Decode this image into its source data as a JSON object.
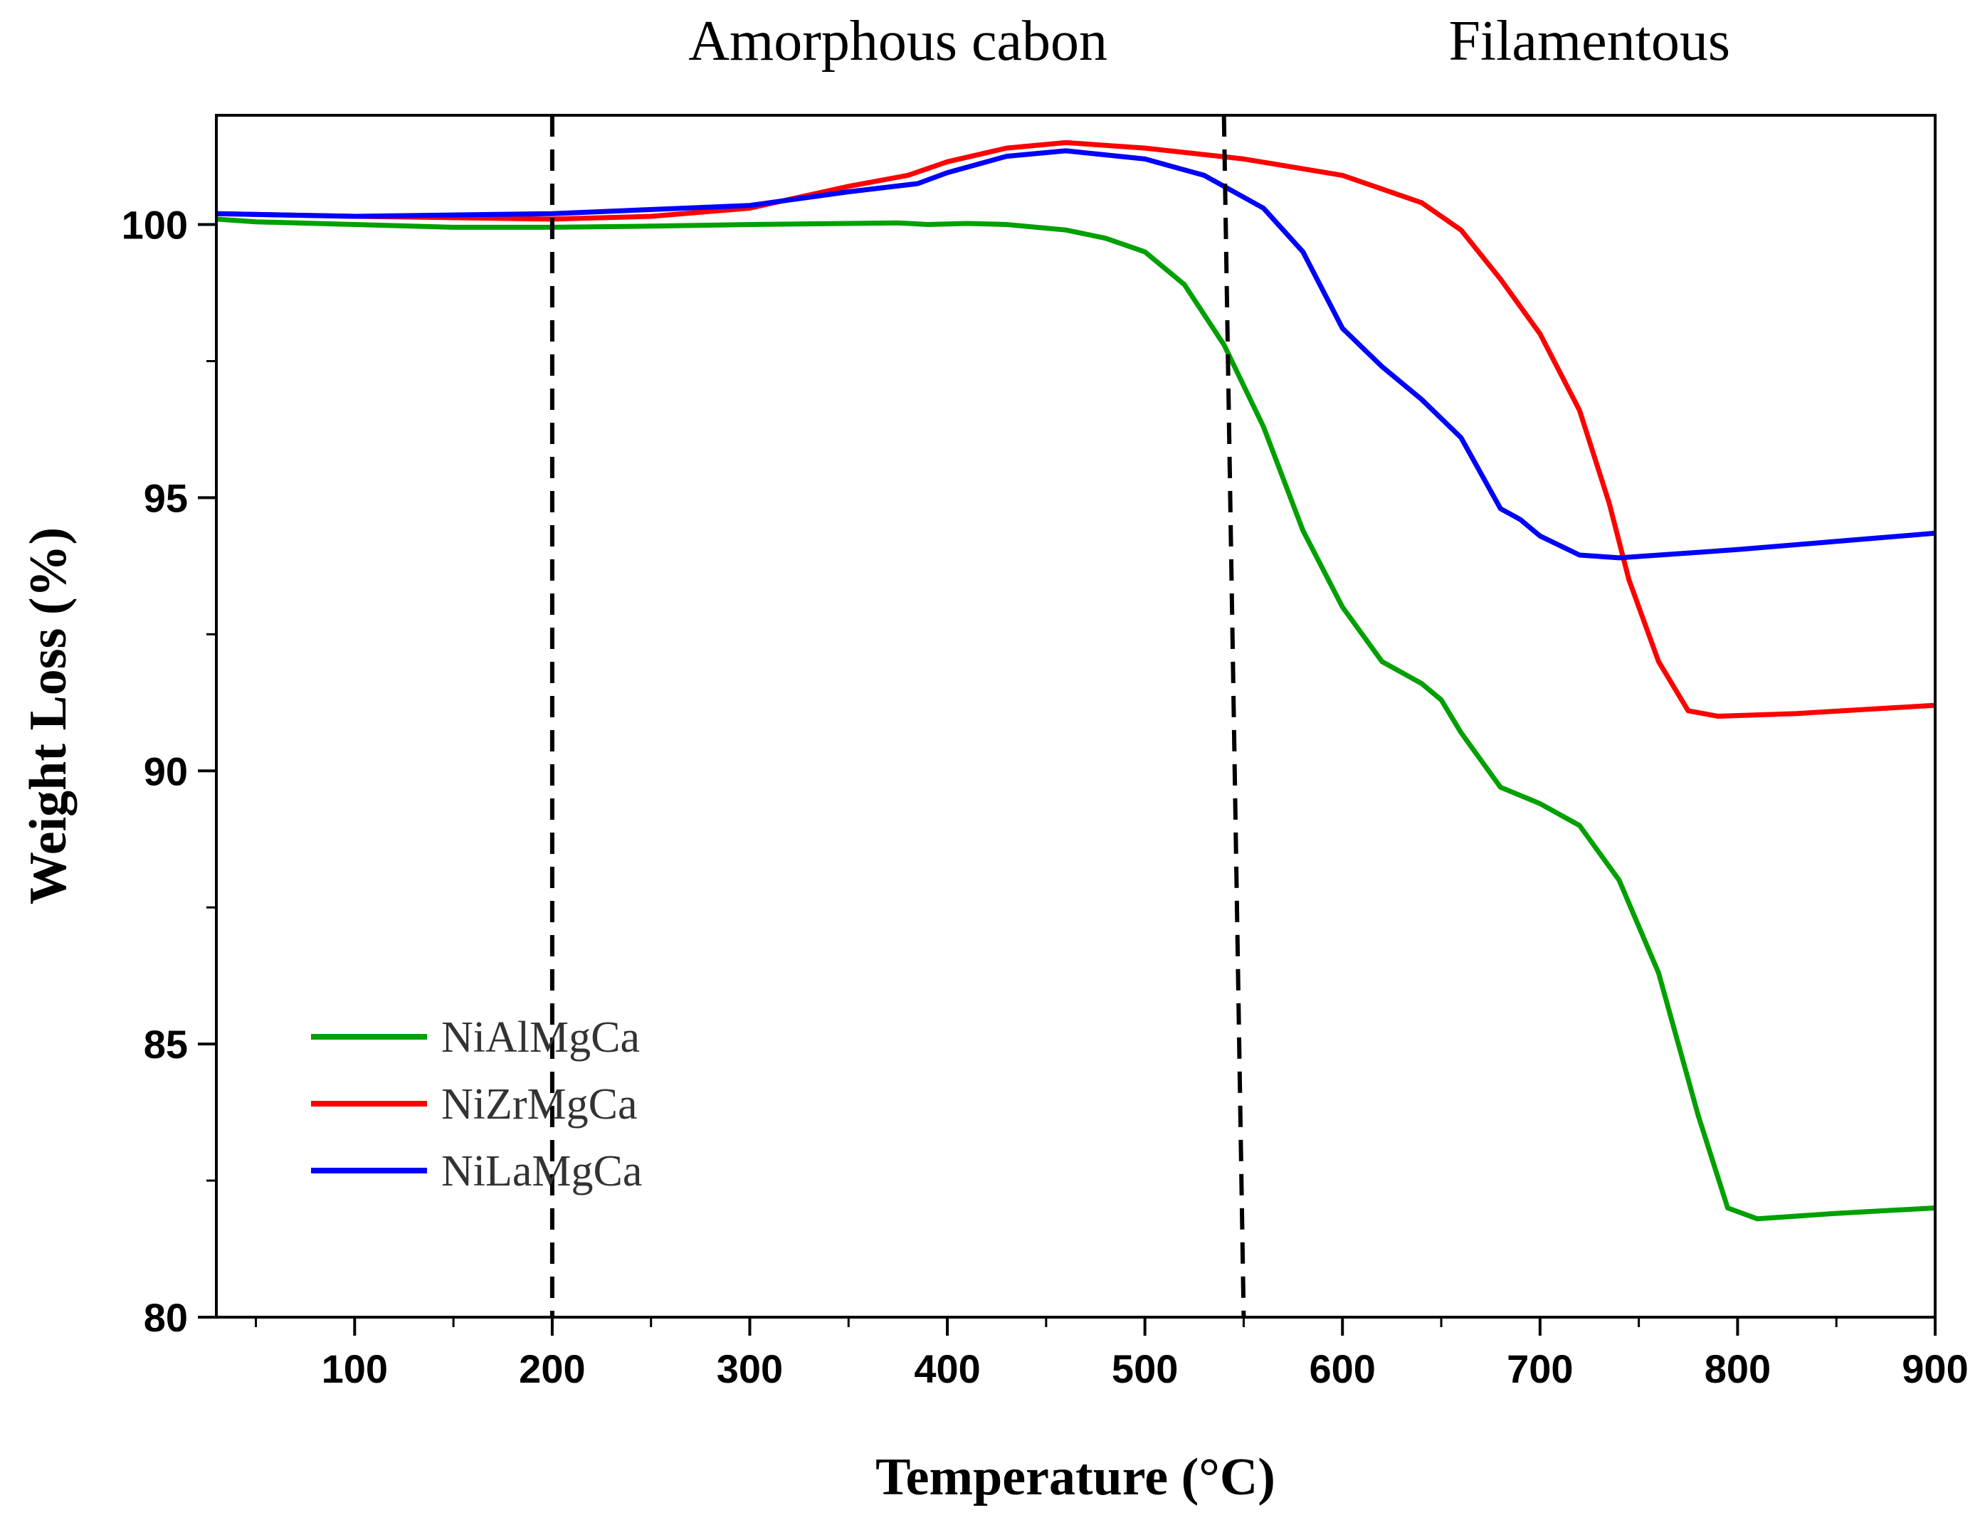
{
  "chart_data": {
    "type": "line",
    "title": "",
    "xlabel": "Temperature (°C)",
    "ylabel": "Weight Loss (%)",
    "xlim": [
      30,
      900
    ],
    "ylim": [
      80,
      102
    ],
    "xticks": [
      100,
      200,
      300,
      400,
      500,
      600,
      700,
      800,
      900
    ],
    "yticks": [
      80,
      85,
      90,
      95,
      100
    ],
    "x_minor_step": 50,
    "y_minor_step": 2.5,
    "grid": false,
    "legend_position": "bottom-left",
    "annotations": [
      {
        "label": "Amorphous cabon",
        "x": 375
      },
      {
        "label": "Filamentous",
        "x": 725
      }
    ],
    "region_lines": [
      {
        "x_top": 200,
        "x_bottom": 200
      },
      {
        "x_top": 540,
        "x_bottom": 550
      }
    ],
    "series": [
      {
        "name": "NiAlMgCa",
        "color": "#00a000",
        "points": [
          [
            30,
            100.1
          ],
          [
            50,
            100.05
          ],
          [
            100,
            100.0
          ],
          [
            150,
            99.95
          ],
          [
            200,
            99.95
          ],
          [
            250,
            99.97
          ],
          [
            300,
            100.0
          ],
          [
            350,
            100.02
          ],
          [
            375,
            100.03
          ],
          [
            390,
            100.0
          ],
          [
            410,
            100.02
          ],
          [
            430,
            100.0
          ],
          [
            460,
            99.9
          ],
          [
            480,
            99.75
          ],
          [
            500,
            99.5
          ],
          [
            520,
            98.9
          ],
          [
            540,
            97.8
          ],
          [
            560,
            96.3
          ],
          [
            580,
            94.4
          ],
          [
            600,
            93.0
          ],
          [
            620,
            92.0
          ],
          [
            640,
            91.6
          ],
          [
            650,
            91.3
          ],
          [
            660,
            90.7
          ],
          [
            680,
            89.7
          ],
          [
            700,
            89.4
          ],
          [
            720,
            89.0
          ],
          [
            740,
            88.0
          ],
          [
            760,
            86.3
          ],
          [
            780,
            83.7
          ],
          [
            795,
            82.0
          ],
          [
            810,
            81.8
          ],
          [
            850,
            81.9
          ],
          [
            900,
            82.0
          ]
        ]
      },
      {
        "name": "NiZrMgCa",
        "color": "#ff0000",
        "points": [
          [
            30,
            100.2
          ],
          [
            100,
            100.15
          ],
          [
            200,
            100.1
          ],
          [
            250,
            100.15
          ],
          [
            300,
            100.3
          ],
          [
            350,
            100.7
          ],
          [
            380,
            100.9
          ],
          [
            400,
            101.15
          ],
          [
            430,
            101.4
          ],
          [
            460,
            101.5
          ],
          [
            500,
            101.4
          ],
          [
            550,
            101.2
          ],
          [
            600,
            100.9
          ],
          [
            640,
            100.4
          ],
          [
            660,
            99.9
          ],
          [
            680,
            99.0
          ],
          [
            700,
            98.0
          ],
          [
            720,
            96.6
          ],
          [
            735,
            94.9
          ],
          [
            745,
            93.5
          ],
          [
            760,
            92.0
          ],
          [
            775,
            91.1
          ],
          [
            790,
            91.0
          ],
          [
            830,
            91.05
          ],
          [
            900,
            91.2
          ]
        ]
      },
      {
        "name": "NiLaMgCa",
        "color": "#0000ff",
        "points": [
          [
            30,
            100.2
          ],
          [
            100,
            100.15
          ],
          [
            200,
            100.2
          ],
          [
            300,
            100.35
          ],
          [
            350,
            100.6
          ],
          [
            385,
            100.75
          ],
          [
            400,
            100.95
          ],
          [
            430,
            101.25
          ],
          [
            460,
            101.35
          ],
          [
            500,
            101.2
          ],
          [
            530,
            100.9
          ],
          [
            560,
            100.3
          ],
          [
            580,
            99.5
          ],
          [
            600,
            98.1
          ],
          [
            620,
            97.4
          ],
          [
            640,
            96.8
          ],
          [
            660,
            96.1
          ],
          [
            680,
            94.8
          ],
          [
            690,
            94.6
          ],
          [
            700,
            94.3
          ],
          [
            720,
            93.95
          ],
          [
            740,
            93.9
          ],
          [
            800,
            94.05
          ],
          [
            850,
            94.2
          ],
          [
            900,
            94.35
          ]
        ]
      }
    ]
  }
}
